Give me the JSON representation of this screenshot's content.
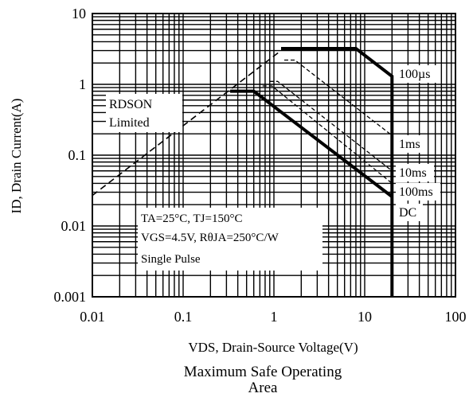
{
  "chart_data": {
    "type": "line",
    "x_scale": "log",
    "y_scale": "log",
    "xlim": [
      0.01,
      100
    ],
    "ylim": [
      0.001,
      10
    ],
    "grid": true,
    "x_tick_labels": [
      "0.01",
      "0.1",
      "1",
      "10",
      "100"
    ],
    "y_tick_labels": [
      "10",
      "1",
      "0.1",
      "0.01",
      "0.001"
    ],
    "x_ticks": [
      0.01,
      0.1,
      1,
      10,
      100
    ],
    "y_ticks": [
      10,
      1,
      0.1,
      0.01,
      0.001
    ],
    "xlabel": "VDS, Drain-Source Voltage(V)",
    "ylabel": "ID, Drain Current(A)",
    "caption_line1": "Maximum Safe Operating",
    "caption_line2": "Area",
    "rdson_label_line1": "RDSON",
    "rdson_label_line2": "Limited",
    "conditions_line1": "TA=25°C, TJ=150°C",
    "conditions_line2": "VGS=4.5V, RθJA=250°C/W",
    "conditions_line3": "Single Pulse",
    "rdson_limit": {
      "x": [
        0.01,
        1.2
      ],
      "y": [
        0.027,
        3.0
      ]
    },
    "series": [
      {
        "name": "100µs",
        "style": "solid-thick",
        "x": [
          1.2,
          8,
          20,
          20
        ],
        "y": [
          3.2,
          3.2,
          1.3,
          0.001
        ]
      },
      {
        "name": "1ms",
        "style": "dashed",
        "x": [
          1.3,
          1.7,
          20
        ],
        "y": [
          2.2,
          2.2,
          0.19
        ]
      },
      {
        "name": "10ms",
        "style": "dashed",
        "x": [
          0.9,
          1.1,
          20
        ],
        "y": [
          1.1,
          1.1,
          0.06
        ]
      },
      {
        "name": "100ms",
        "style": "dashed",
        "x": [
          0.75,
          0.95,
          20
        ],
        "y": [
          0.95,
          0.95,
          0.04
        ]
      },
      {
        "name": "DC",
        "style": "solid-thick",
        "x": [
          0.33,
          0.6,
          20
        ],
        "y": [
          0.8,
          0.8,
          0.026
        ]
      }
    ],
    "series_labels": [
      "100µs",
      "1ms",
      "10ms",
      "100ms",
      "DC"
    ]
  }
}
